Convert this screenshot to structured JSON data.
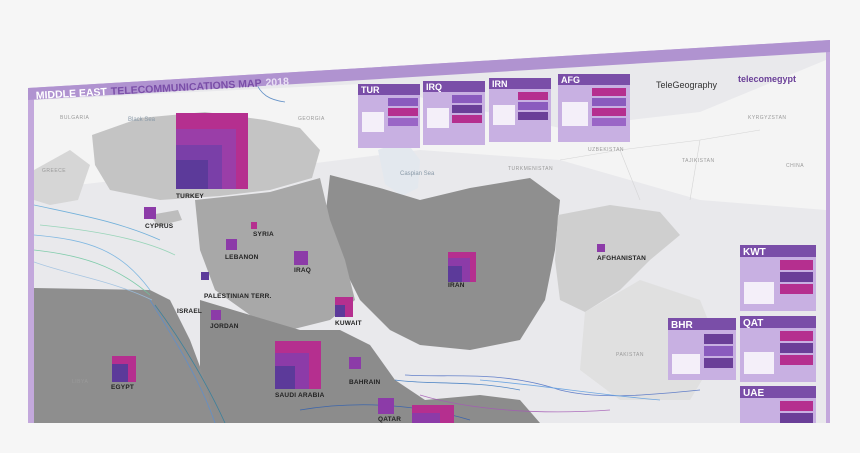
{
  "poster": {
    "title_prefix": "MIDDLE EAST",
    "title_main": "TELECOMMUNICATIONS MAP",
    "year": "2018",
    "brand_a": "TeleGeography",
    "brand_b": "telecomegypt",
    "colors": {
      "frame": "#c3a8dc",
      "header": "#7a4ea8",
      "accent": "#b52f8f",
      "land": "#8f8f8f"
    }
  },
  "country_panels": [
    {
      "code": "TUR"
    },
    {
      "code": "IRQ"
    },
    {
      "code": "IRN"
    },
    {
      "code": "AFG"
    },
    {
      "code": "KWT"
    },
    {
      "code": "BHR"
    },
    {
      "code": "QAT"
    },
    {
      "code": "UAE"
    }
  ],
  "countries": [
    "TURKEY",
    "CYPRUS",
    "SYRIA",
    "LEBANON",
    "IRAQ",
    "PALESTINIAN TERR.",
    "ISRAEL",
    "JORDAN",
    "IRAN",
    "AFGHANISTAN",
    "KUWAIT",
    "EGYPT",
    "SAUDI ARABIA",
    "BAHRAIN",
    "QATAR"
  ],
  "geo_labels": [
    "BULGARIA",
    "GREECE",
    "GEORGIA",
    "UZBEKISTAN",
    "TURKMENISTAN",
    "KYRGYZSTAN",
    "TAJIKISTAN",
    "CHINA",
    "PAKISTAN",
    "LIBYA"
  ],
  "seas": [
    "Black Sea",
    "Caspian Sea"
  ]
}
